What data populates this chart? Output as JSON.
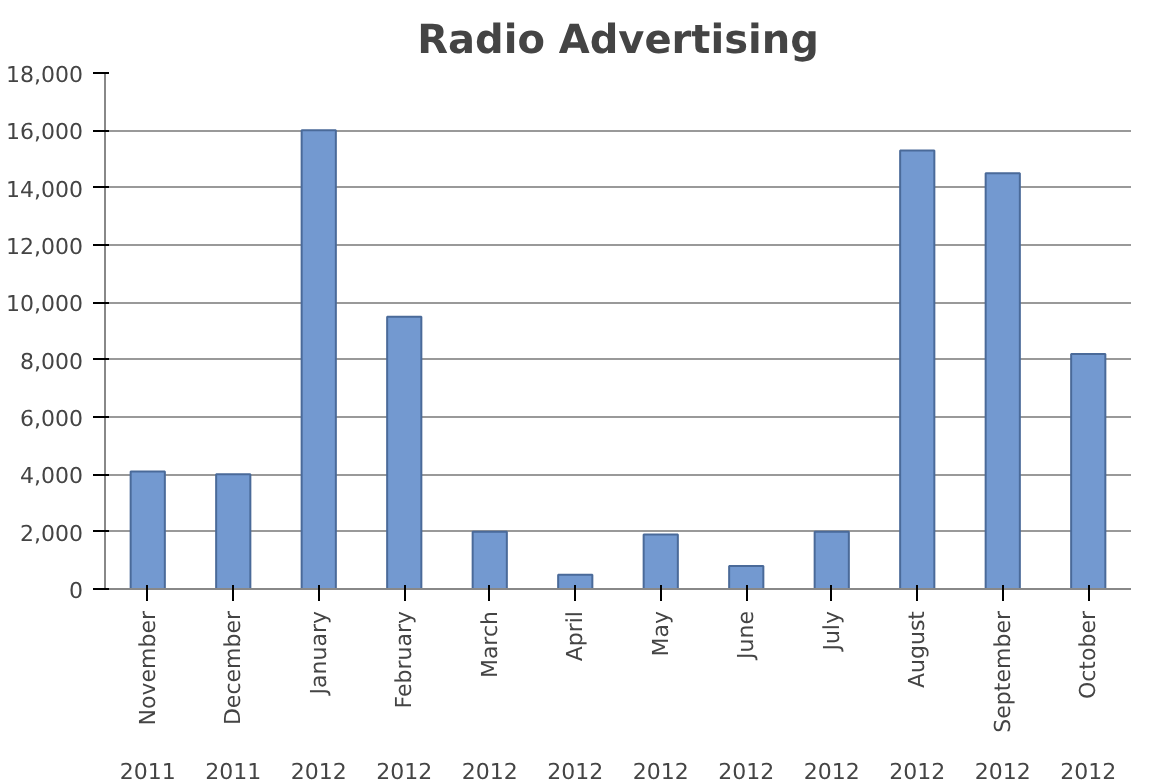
{
  "chart_data": {
    "type": "bar",
    "title": "Radio Advertising",
    "categories": [
      "November",
      "December",
      "January",
      "February",
      "March",
      "April",
      "May",
      "June",
      "July",
      "August",
      "September",
      "October"
    ],
    "values": [
      4100,
      4000,
      16000,
      9500,
      2000,
      500,
      1900,
      800,
      2000,
      15300,
      14500,
      8200
    ],
    "color": "#7399d0",
    "ylim": [
      0,
      18000
    ],
    "yticks": [
      {
        "value": 0,
        "label": "0"
      },
      {
        "value": 2000,
        "label": "2,000"
      },
      {
        "value": 4000,
        "label": "4,000"
      },
      {
        "value": 6000,
        "label": "6,000"
      },
      {
        "value": 8000,
        "label": "8,000"
      },
      {
        "value": 10000,
        "label": "10,000"
      },
      {
        "value": 12000,
        "label": "12,000"
      },
      {
        "value": 14000,
        "label": "14,000"
      },
      {
        "value": 16000,
        "label": "16,000"
      },
      {
        "value": 18000,
        "label": "18,000"
      }
    ],
    "grid": "y",
    "annotations": [
      "2011",
      "2011",
      "2012",
      "2012",
      "2012",
      "2012",
      "2012",
      "2012",
      "2012",
      "2012",
      "2012",
      "2012"
    ]
  }
}
